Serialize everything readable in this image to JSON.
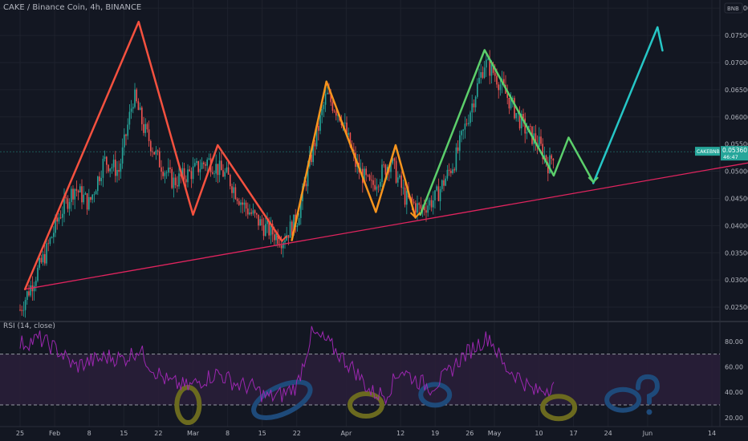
{
  "header": {
    "title": "CAKE / Binance Coin, 4h, BINANCE",
    "currency": "BNB"
  },
  "rsi_panel": {
    "label": "RSI (14, close)"
  },
  "colors": {
    "background": "#131722",
    "grid": "#1e222d",
    "up": "#26a69a",
    "down": "#ef5350",
    "red_wave": "#f5513f",
    "orange_wave": "#f7941d",
    "green_wave": "#5ccf6b",
    "teal_wave": "#26c6c6",
    "support_line": "#e0245e",
    "rsi_line": "#9c27b0",
    "rsi_band": "#2a1e3a",
    "olive_circle": "#6b6a1f",
    "blue_circle": "#1e4a7a"
  },
  "chart_data": [
    {
      "type": "candlestick",
      "symbol": "CAKE / Binance Coin",
      "interval": "4h",
      "exchange": "BINANCE",
      "yaxis_ticks": [
        "0.08000",
        "0.07500",
        "0.07000",
        "0.06500",
        "0.06000",
        "0.05500",
        "0.05000",
        "0.04500",
        "0.04000",
        "0.03500",
        "0.03000",
        "0.02500"
      ],
      "ylim": [
        0.0225,
        0.0815
      ],
      "current_price": {
        "label": "CAKEBNB",
        "value": "0.05360",
        "countdown": "46:47"
      },
      "xaxis_ticks": [
        "25",
        "Feb",
        "8",
        "15",
        "22",
        "Mar",
        "8",
        "15",
        "22",
        "Apr",
        "12",
        "19",
        "26",
        "May",
        "10",
        "17",
        "24",
        "Jun",
        "14"
      ],
      "price_path": [
        {
          "date": "2021-01-25",
          "close": 0.0245
        },
        {
          "date": "2021-01-27",
          "close": 0.0285
        },
        {
          "date": "2021-01-30",
          "close": 0.0345
        },
        {
          "date": "2021-02-02",
          "close": 0.042
        },
        {
          "date": "2021-02-05",
          "close": 0.047
        },
        {
          "date": "2021-02-08",
          "close": 0.044
        },
        {
          "date": "2021-02-11",
          "close": 0.052
        },
        {
          "date": "2021-02-14",
          "close": 0.05
        },
        {
          "date": "2021-02-17",
          "close": 0.064
        },
        {
          "date": "2021-02-19",
          "close": 0.058
        },
        {
          "date": "2021-02-22",
          "close": 0.052
        },
        {
          "date": "2021-02-25",
          "close": 0.048
        },
        {
          "date": "2021-03-01",
          "close": 0.05
        },
        {
          "date": "2021-03-04",
          "close": 0.052
        },
        {
          "date": "2021-03-08",
          "close": 0.049
        },
        {
          "date": "2021-03-11",
          "close": 0.044
        },
        {
          "date": "2021-03-15",
          "close": 0.04
        },
        {
          "date": "2021-03-19",
          "close": 0.0375
        },
        {
          "date": "2021-03-22",
          "close": 0.041
        },
        {
          "date": "2021-03-25",
          "close": 0.053
        },
        {
          "date": "2021-03-28",
          "close": 0.064
        },
        {
          "date": "2021-03-31",
          "close": 0.06
        },
        {
          "date": "2021-04-03",
          "close": 0.051
        },
        {
          "date": "2021-04-06",
          "close": 0.047
        },
        {
          "date": "2021-04-10",
          "close": 0.052
        },
        {
          "date": "2021-04-13",
          "close": 0.045
        },
        {
          "date": "2021-04-16",
          "close": 0.043
        },
        {
          "date": "2021-04-19",
          "close": 0.045
        },
        {
          "date": "2021-04-23",
          "close": 0.052
        },
        {
          "date": "2021-04-26",
          "close": 0.061
        },
        {
          "date": "2021-04-29",
          "close": 0.07
        },
        {
          "date": "2021-05-01",
          "close": 0.068
        },
        {
          "date": "2021-05-04",
          "close": 0.063
        },
        {
          "date": "2021-05-07",
          "close": 0.058
        },
        {
          "date": "2021-05-10",
          "close": 0.055
        },
        {
          "date": "2021-05-12",
          "close": 0.051
        },
        {
          "date": "2021-05-13",
          "close": 0.0536
        }
      ],
      "drawings": {
        "red_wave": [
          {
            "date": "2021-01-26",
            "price": 0.0283
          },
          {
            "date": "2021-02-18",
            "price": 0.0775
          },
          {
            "date": "2021-03-01",
            "price": 0.042
          },
          {
            "date": "2021-03-06",
            "price": 0.0548
          },
          {
            "date": "2021-03-19",
            "price": 0.0372
          }
        ],
        "orange_wave": [
          {
            "date": "2021-03-21",
            "price": 0.0373
          },
          {
            "date": "2021-03-28",
            "price": 0.0665
          },
          {
            "date": "2021-04-07",
            "price": 0.0425
          },
          {
            "date": "2021-04-11",
            "price": 0.0548
          },
          {
            "date": "2021-04-15",
            "price": 0.0415
          }
        ],
        "green_wave": [
          {
            "date": "2021-04-16",
            "price": 0.042
          },
          {
            "date": "2021-04-29",
            "price": 0.0723
          },
          {
            "date": "2021-05-13",
            "price": 0.0492
          },
          {
            "date": "2021-05-16",
            "price": 0.0562
          },
          {
            "date": "2021-05-21",
            "price": 0.048
          }
        ],
        "teal_wave": [
          {
            "date": "2021-05-21",
            "price": 0.0478
          },
          {
            "date": "2021-06-03",
            "price": 0.0765
          },
          {
            "date": "2021-06-04",
            "price": 0.0722
          }
        ],
        "support_line": [
          {
            "date": "2021-01-26",
            "price": 0.0283
          },
          {
            "date": "2021-06-23",
            "price": 0.0518
          }
        ]
      }
    },
    {
      "type": "line",
      "name": "RSI (14, close)",
      "yaxis_ticks": [
        "80.00",
        "60.00",
        "40.00",
        "20.00"
      ],
      "ylim": [
        13,
        95
      ],
      "bands": [
        70,
        30
      ],
      "x_dates": [
        "2021-01-25",
        "2021-01-29",
        "2021-02-02",
        "2021-02-05",
        "2021-02-08",
        "2021-02-12",
        "2021-02-15",
        "2021-02-18",
        "2021-02-21",
        "2021-02-24",
        "2021-02-28",
        "2021-03-03",
        "2021-03-06",
        "2021-03-10",
        "2021-03-13",
        "2021-03-16",
        "2021-03-19",
        "2021-03-22",
        "2021-03-25",
        "2021-03-28",
        "2021-03-31",
        "2021-04-03",
        "2021-04-06",
        "2021-04-09",
        "2021-04-12",
        "2021-04-15",
        "2021-04-18",
        "2021-04-21",
        "2021-04-24",
        "2021-04-27",
        "2021-04-30",
        "2021-05-03",
        "2021-05-06",
        "2021-05-09",
        "2021-05-12",
        "2021-05-13"
      ],
      "values": [
        78,
        82,
        72,
        60,
        64,
        68,
        66,
        74,
        58,
        48,
        44,
        50,
        55,
        46,
        44,
        36,
        38,
        45,
        86,
        80,
        68,
        56,
        40,
        38,
        58,
        50,
        44,
        52,
        66,
        76,
        84,
        60,
        52,
        40,
        44,
        48
      ]
    }
  ]
}
